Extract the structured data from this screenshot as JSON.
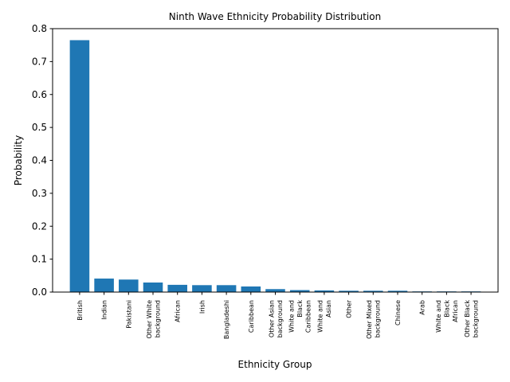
{
  "chart_data": {
    "type": "bar",
    "title": "Ninth Wave Ethnicity Probability Distribution",
    "xlabel": "Ethnicity Group",
    "ylabel": "Probability",
    "ylim": [
      0,
      0.8
    ],
    "yticks": [
      "0.0",
      "0.1",
      "0.2",
      "0.3",
      "0.4",
      "0.5",
      "0.6",
      "0.7",
      "0.8"
    ],
    "grid": false,
    "bar_color": "#1f77b4",
    "categories": [
      "British",
      "Indian",
      "Pakistani",
      "Other White\nbackground",
      "African",
      "Irish",
      "Bangladeshi",
      "Caribbean",
      "Other Asian\nbackground",
      "White and\nBlack\nCaribbean",
      "White and\nAsian",
      "Other",
      "Other Mixed\nbackground",
      "Chinese",
      "Arab",
      "White and\nBlack\nAfrican",
      "Other Black\nbackground"
    ],
    "values": [
      0.765,
      0.041,
      0.038,
      0.029,
      0.022,
      0.021,
      0.021,
      0.017,
      0.009,
      0.006,
      0.005,
      0.004,
      0.004,
      0.004,
      0.002,
      0.002,
      0.002
    ]
  }
}
